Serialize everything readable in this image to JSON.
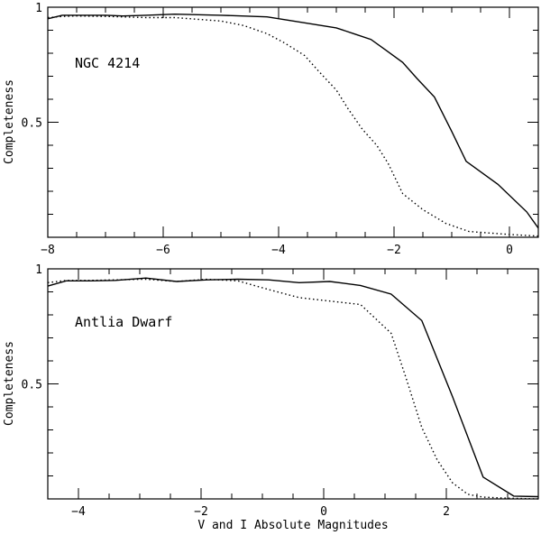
{
  "chart_data": [
    {
      "type": "line",
      "annotation": "NGC 4214",
      "ylabel": "Completeness",
      "xlabel": "",
      "xlim": [
        -8,
        0.5
      ],
      "ylim": [
        0,
        1
      ],
      "x_ticks": [
        -8,
        -6,
        -4,
        -2,
        0
      ],
      "y_ticks": [
        0.5,
        1
      ],
      "x_tick_labels": [
        "−8",
        "−6",
        "−4",
        "−2",
        "0"
      ],
      "y_tick_labels": [
        "0.5",
        "1"
      ],
      "grid": false,
      "series": [
        {
          "style": "solid",
          "x": [
            -8.0,
            -7.75,
            -7.5,
            -7.0,
            -6.7,
            -6.3,
            -5.8,
            -5.0,
            -4.2,
            -3.5,
            -3.0,
            -2.7,
            -2.4,
            -2.15,
            -1.85,
            -1.6,
            -1.3,
            -1.0,
            -0.75,
            -0.2,
            0.3,
            0.5
          ],
          "y": [
            0.95,
            0.965,
            0.965,
            0.965,
            0.962,
            0.965,
            0.97,
            0.965,
            0.958,
            0.93,
            0.91,
            0.885,
            0.86,
            0.815,
            0.76,
            0.69,
            0.61,
            0.46,
            0.33,
            0.23,
            0.11,
            0.04
          ]
        },
        {
          "style": "dotted",
          "x": [
            -8.0,
            -7.75,
            -7.5,
            -7.0,
            -6.7,
            -6.3,
            -5.8,
            -5.0,
            -4.6,
            -4.2,
            -3.9,
            -3.55,
            -3.3,
            -3.0,
            -2.8,
            -2.55,
            -2.3,
            -2.1,
            -1.85,
            -1.5,
            -1.1,
            -0.7,
            0.0,
            0.5
          ],
          "y": [
            0.955,
            0.96,
            0.962,
            0.96,
            0.958,
            0.955,
            0.955,
            0.94,
            0.92,
            0.885,
            0.845,
            0.79,
            0.72,
            0.64,
            0.56,
            0.47,
            0.4,
            0.32,
            0.19,
            0.12,
            0.06,
            0.025,
            0.012,
            0.005
          ]
        }
      ]
    },
    {
      "type": "line",
      "annotation": "Antlia Dwarf",
      "ylabel": "Completeness",
      "xlabel": "V and I Absolute Magnitudes",
      "xlim": [
        -4.5,
        3.5
      ],
      "ylim": [
        0,
        1
      ],
      "x_ticks": [
        -4,
        -2,
        0,
        2
      ],
      "y_ticks": [
        0.5,
        1
      ],
      "x_tick_labels": [
        "−4",
        "−2",
        "0",
        "2"
      ],
      "y_tick_labels": [
        "0.5",
        "1"
      ],
      "grid": false,
      "series": [
        {
          "style": "solid",
          "x": [
            -4.5,
            -4.2,
            -3.8,
            -3.4,
            -2.9,
            -2.4,
            -1.9,
            -1.4,
            -0.9,
            -0.4,
            0.1,
            0.6,
            1.1,
            1.6,
            2.1,
            2.6,
            3.1,
            3.5
          ],
          "y": [
            0.925,
            0.948,
            0.948,
            0.95,
            0.96,
            0.945,
            0.952,
            0.955,
            0.952,
            0.94,
            0.945,
            0.928,
            0.89,
            0.775,
            0.445,
            0.095,
            0.012,
            0.01
          ]
        },
        {
          "style": "dotted",
          "x": [
            -4.5,
            -4.2,
            -3.8,
            -3.4,
            -2.9,
            -2.4,
            -1.9,
            -1.4,
            -0.9,
            -0.4,
            0.1,
            0.6,
            1.1,
            1.35,
            1.6,
            1.85,
            2.1,
            2.35,
            2.6,
            3.0,
            3.5
          ],
          "y": [
            0.94,
            0.95,
            0.95,
            0.952,
            0.955,
            0.945,
            0.955,
            0.948,
            0.91,
            0.875,
            0.86,
            0.845,
            0.72,
            0.52,
            0.31,
            0.17,
            0.07,
            0.02,
            0.008,
            0.003,
            0.0
          ]
        }
      ]
    }
  ]
}
